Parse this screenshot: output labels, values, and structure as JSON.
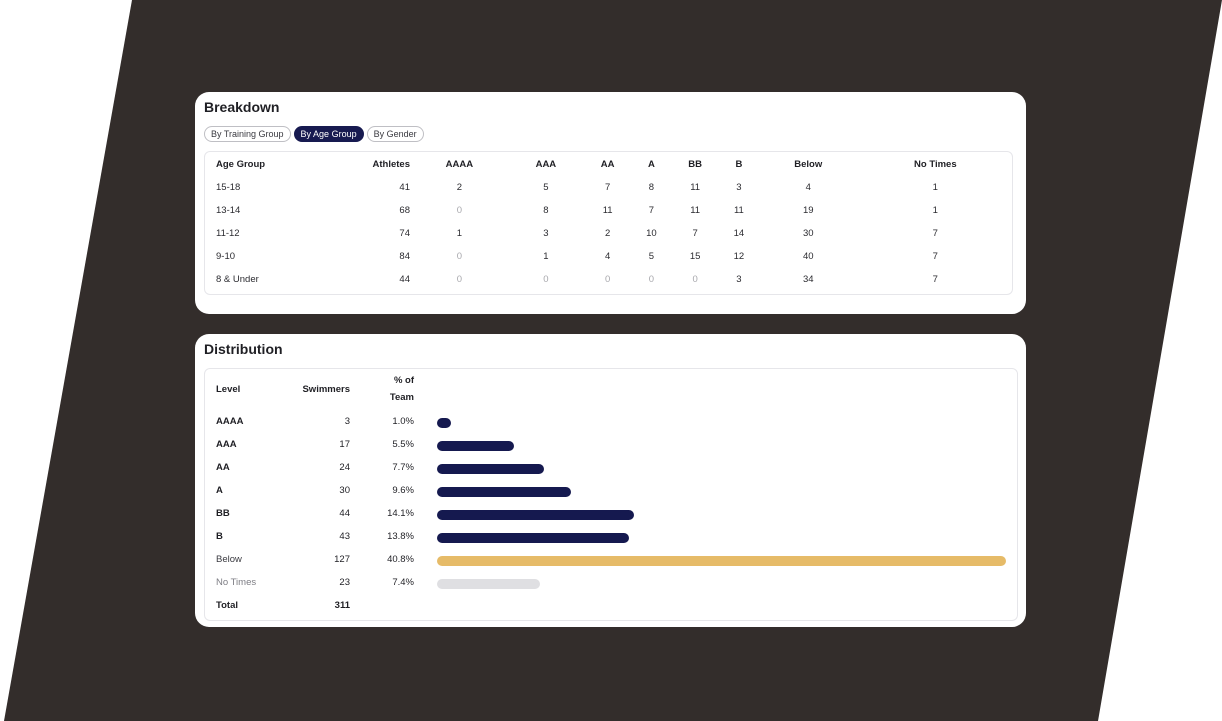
{
  "breakdown": {
    "title": "Breakdown",
    "tabs": [
      {
        "label": "By Training Group",
        "active": false
      },
      {
        "label": "By Age Group",
        "active": true
      },
      {
        "label": "By Gender",
        "active": false
      }
    ],
    "columns": [
      "Age Group",
      "Athletes",
      "AAAA",
      "AAA",
      "AA",
      "A",
      "BB",
      "B",
      "Below",
      "No Times"
    ],
    "rows": [
      {
        "group": "15-18",
        "athletes": "41",
        "aaaa": "2",
        "aaa": "5",
        "aa": "7",
        "a": "8",
        "bb": "11",
        "b": "3",
        "below": "4",
        "no_times": "1"
      },
      {
        "group": "13-14",
        "athletes": "68",
        "aaaa": "0",
        "aaa": "8",
        "aa": "11",
        "a": "7",
        "bb": "11",
        "b": "11",
        "below": "19",
        "no_times": "1"
      },
      {
        "group": "11-12",
        "athletes": "74",
        "aaaa": "1",
        "aaa": "3",
        "aa": "2",
        "a": "10",
        "bb": "7",
        "b": "14",
        "below": "30",
        "no_times": "7"
      },
      {
        "group": "9-10",
        "athletes": "84",
        "aaaa": "0",
        "aaa": "1",
        "aa": "4",
        "a": "5",
        "bb": "15",
        "b": "12",
        "below": "40",
        "no_times": "7"
      },
      {
        "group": "8 & Under",
        "athletes": "44",
        "aaaa": "0",
        "aaa": "0",
        "aa": "0",
        "a": "0",
        "bb": "0",
        "b": "3",
        "below": "34",
        "no_times": "7"
      }
    ]
  },
  "distribution": {
    "title": "Distribution",
    "headers": {
      "level": "Level",
      "swimmers": "Swimmers",
      "pct_line1": "% of",
      "pct_line2": "Team"
    },
    "rows": [
      {
        "level": "AAAA",
        "swimmers": "3",
        "pct": "1.0%",
        "share": 1.0
      },
      {
        "level": "AAA",
        "swimmers": "17",
        "pct": "5.5%",
        "share": 5.5
      },
      {
        "level": "AA",
        "swimmers": "24",
        "pct": "7.7%",
        "share": 7.7
      },
      {
        "level": "A",
        "swimmers": "30",
        "pct": "9.6%",
        "share": 9.6
      },
      {
        "level": "BB",
        "swimmers": "44",
        "pct": "14.1%",
        "share": 14.1
      },
      {
        "level": "B",
        "swimmers": "43",
        "pct": "13.8%",
        "share": 13.8
      },
      {
        "level": "Below",
        "swimmers": "127",
        "pct": "40.8%",
        "share": 40.8
      },
      {
        "level": "No Times",
        "swimmers": "23",
        "pct": "7.4%",
        "share": 7.4
      }
    ],
    "total": {
      "label": "Total",
      "swimmers": "311"
    }
  },
  "colors": {
    "background_shape": "#332d2b",
    "accent_navy": "#15194f",
    "below_gold": "#e6bb68",
    "no_times_gray": "#dfdfe2"
  }
}
